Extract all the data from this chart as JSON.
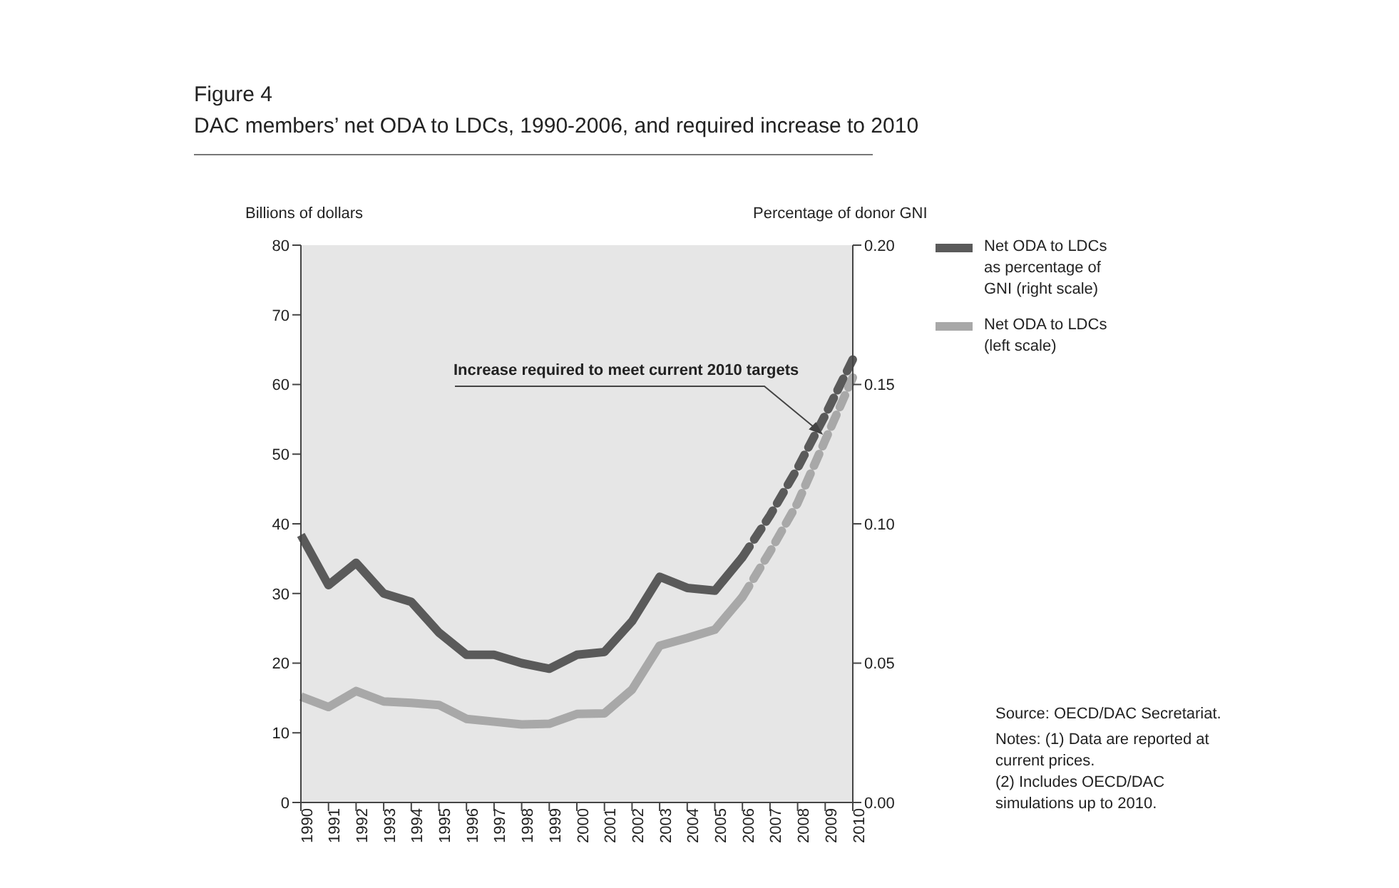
{
  "chart_data": {
    "type": "line",
    "title": "Figure 4",
    "subtitle": "DAC members’ net ODA to LDCs, 1990-2006, and required increase to 2010",
    "ylabel": "Billions of dollars",
    "y2label": "Percentage of donor GNI",
    "categories": [
      "1990",
      "1991",
      "1992",
      "1993",
      "1994",
      "1995",
      "1996",
      "1997",
      "1998",
      "1999",
      "2000",
      "2001",
      "2002",
      "2003",
      "2004",
      "2005",
      "2006",
      "2007",
      "2008",
      "2009",
      "2010"
    ],
    "series": [
      {
        "name": "Net ODA to LDCs as percentage of GNI (right scale)",
        "color": "#5a5a5a",
        "axis": "y2",
        "line_style": "solid",
        "values": [
          0.096,
          0.078,
          0.086,
          0.075,
          0.072,
          0.061,
          0.053,
          0.053,
          0.05,
          0.048,
          0.053,
          0.054,
          0.065,
          0.081,
          0.077,
          0.076,
          0.088,
          null,
          null,
          null,
          null
        ]
      },
      {
        "name": "Net ODA to LDCs (left scale)",
        "color": "#a8a8a8",
        "axis": "y",
        "line_style": "solid",
        "values": [
          15.2,
          13.7,
          16,
          14.5,
          14.3,
          14,
          12,
          11.6,
          11.2,
          11.3,
          12.7,
          12.8,
          16.2,
          22.5,
          23.6,
          24.8,
          29.5,
          null,
          null,
          null,
          null
        ]
      },
      {
        "color": "#5a5a5a",
        "axis": "y2",
        "line_style": "dashed",
        "values": [
          null,
          null,
          null,
          null,
          null,
          null,
          null,
          null,
          null,
          null,
          null,
          null,
          null,
          null,
          null,
          null,
          0.088,
          0.103,
          0.12,
          0.139,
          0.159
        ]
      },
      {
        "color": "#a8a8a8",
        "axis": "y",
        "line_style": "dashed",
        "values": [
          null,
          null,
          null,
          null,
          null,
          null,
          null,
          null,
          null,
          null,
          null,
          null,
          null,
          null,
          null,
          null,
          29.5,
          36,
          43,
          52,
          61
        ]
      }
    ],
    "ylim": [
      0,
      80
    ],
    "yticks": [
      0,
      10,
      20,
      30,
      40,
      50,
      60,
      70,
      80
    ],
    "y2lim": [
      0,
      0.2
    ],
    "y2ticks": [
      {
        "value": 0,
        "label": "0.00"
      },
      {
        "value": 0.05,
        "label": "0.05"
      },
      {
        "value": 0.1,
        "label": "0.10"
      },
      {
        "value": 0.15,
        "label": "0.15"
      },
      {
        "value": 0.2,
        "label": "0.20"
      }
    ],
    "marker": "none",
    "grid": false,
    "legend": "top right",
    "annotations": [
      "Increase required to meet current 2010 targets",
      "Source:  OECD/DAC Secretariat.",
      "Notes:  (1)  Data are reported at current prices.",
      "(2)  Includes OECD/DAC simulations up to 2010."
    ]
  }
}
